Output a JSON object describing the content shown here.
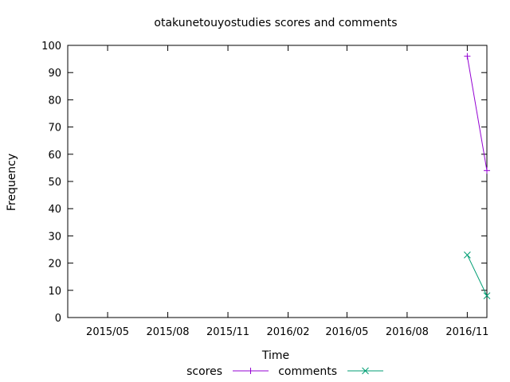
{
  "chart_data": {
    "type": "line",
    "title": "otakunetouyostudies scores and comments",
    "xlabel": "Time",
    "ylabel": "Frequency",
    "xlim": [
      "2015-03-01",
      "2016-12-01"
    ],
    "ylim": [
      0,
      100
    ],
    "yticks": [
      0,
      10,
      20,
      30,
      40,
      50,
      60,
      70,
      80,
      90,
      100
    ],
    "xticks": [
      {
        "date": "2015-05-01",
        "label": "2015/05"
      },
      {
        "date": "2015-08-01",
        "label": "2015/08"
      },
      {
        "date": "2015-11-01",
        "label": "2015/11"
      },
      {
        "date": "2016-02-01",
        "label": "2016/02"
      },
      {
        "date": "2016-05-01",
        "label": "2016/05"
      },
      {
        "date": "2016-08-01",
        "label": "2016/08"
      },
      {
        "date": "2016-11-01",
        "label": "2016/11"
      }
    ],
    "legend_position": "bottom",
    "grid": false,
    "series": [
      {
        "name": "scores",
        "color": "#9400d3",
        "marker": "plus",
        "points": [
          {
            "x": "2016-11-01",
            "y": 96
          },
          {
            "x": "2016-12-01",
            "y": 54
          }
        ]
      },
      {
        "name": "comments",
        "color": "#009e73",
        "marker": "cross",
        "points": [
          {
            "x": "2016-11-01",
            "y": 23
          },
          {
            "x": "2016-12-01",
            "y": 8
          }
        ]
      }
    ]
  }
}
